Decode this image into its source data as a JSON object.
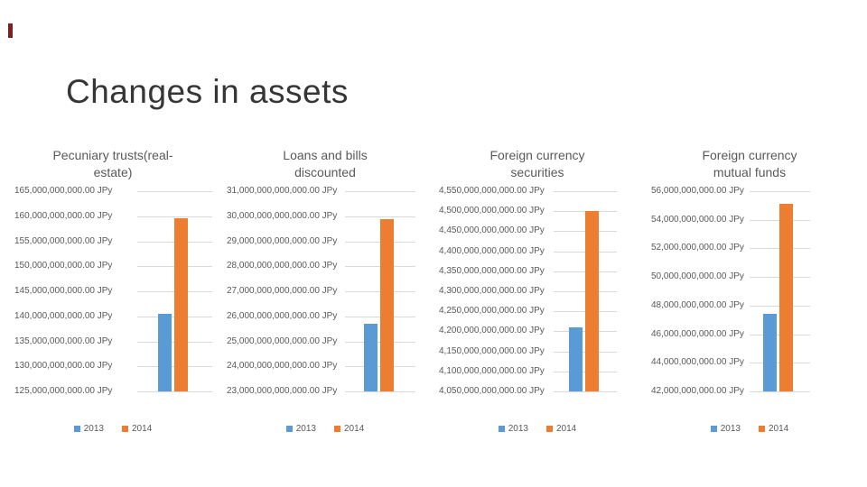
{
  "slide": {
    "title": "Changes in assets",
    "accent_color": "#7f2020"
  },
  "colors": {
    "series_2013": "#5B9BD5",
    "series_2014": "#ED7D31",
    "gridline": "#d9d9d9",
    "label_text": "#595959"
  },
  "chart_data": [
    {
      "type": "bar",
      "title": "Pecuniary trusts(real-estate)",
      "categories": [
        "2013",
        "2014"
      ],
      "values": [
        140500000000,
        159600000000
      ],
      "ylim": [
        125000000000,
        165000000000
      ],
      "ytick_step": 5000000000,
      "yticklabels": [
        "165,000,000,000.00 JPy",
        "160,000,000,000.00 JPy",
        "155,000,000,000.00 JPy",
        "150,000,000,000.00 JPy",
        "145,000,000,000.00 JPy",
        "140,000,000,000.00 JPy",
        "135,000,000,000.00 JPy",
        "130,000,000,000.00 JPy",
        "125,000,000,000.00 JPy"
      ],
      "legend": [
        "2013",
        "2014"
      ],
      "legend_position": "bottom",
      "grid": true
    },
    {
      "type": "bar",
      "title": "Loans and bills discounted",
      "categories": [
        "2013",
        "2014"
      ],
      "values": [
        25700000000000,
        29900000000000
      ],
      "ylim": [
        23000000000000,
        31000000000000
      ],
      "ytick_step": 1000000000000,
      "yticklabels": [
        "31,000,000,000,000.00 JPy",
        "30,000,000,000,000.00 JPy",
        "29,000,000,000,000.00 JPy",
        "28,000,000,000,000.00 JPy",
        "27,000,000,000,000.00 JPy",
        "26,000,000,000,000.00 JPy",
        "25,000,000,000,000.00 JPy",
        "24,000,000,000,000.00 JPy",
        "23,000,000,000,000.00 JPy"
      ],
      "legend": [
        "2013",
        "2014"
      ],
      "legend_position": "bottom",
      "grid": true
    },
    {
      "type": "bar",
      "title": "Foreign currency securities",
      "categories": [
        "2013",
        "2014"
      ],
      "values": [
        4210000000000,
        4500000000000
      ],
      "ylim": [
        4050000000000,
        4550000000000
      ],
      "ytick_step": 50000000000,
      "yticklabels": [
        "4,550,000,000,000.00 JPy",
        "4,500,000,000,000.00 JPy",
        "4,450,000,000,000.00 JPy",
        "4,400,000,000,000.00 JPy",
        "4,350,000,000,000.00 JPy",
        "4,300,000,000,000.00 JPy",
        "4,250,000,000,000.00 JPy",
        "4,200,000,000,000.00 JPy",
        "4,150,000,000,000.00 JPy",
        "4,100,000,000,000.00 JPy",
        "4,050,000,000,000.00 JPy"
      ],
      "legend": [
        "2013",
        "2014"
      ],
      "legend_position": "bottom",
      "grid": true
    },
    {
      "type": "bar",
      "title": "Foreign currency mutual funds",
      "categories": [
        "2013",
        "2014"
      ],
      "values": [
        47400000000,
        55100000000
      ],
      "ylim": [
        42000000000,
        56000000000
      ],
      "ytick_step": 2000000000,
      "yticklabels": [
        "56,000,000,000.00 JPy",
        "54,000,000,000.00 JPy",
        "52,000,000,000.00 JPy",
        "50,000,000,000.00 JPy",
        "48,000,000,000.00 JPy",
        "46,000,000,000.00 JPy",
        "44,000,000,000.00 JPy",
        "42,000,000,000.00 JPy"
      ],
      "legend": [
        "2013",
        "2014"
      ],
      "legend_position": "bottom",
      "grid": true
    }
  ]
}
